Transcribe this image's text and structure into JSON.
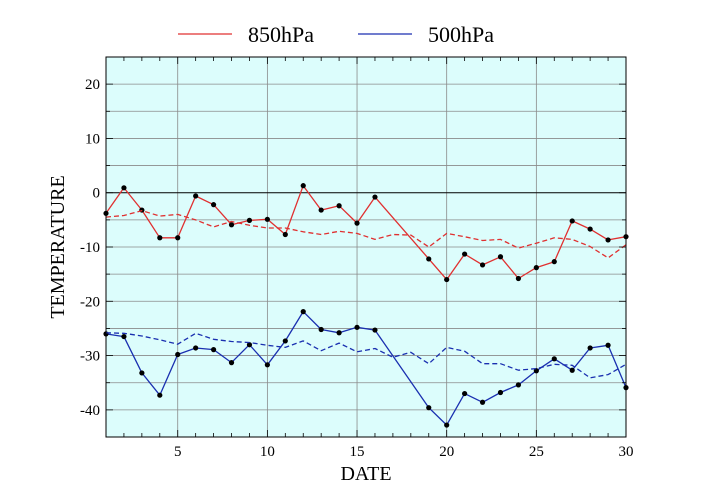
{
  "chart_data": {
    "type": "line",
    "xlabel": "DATE",
    "ylabel": "TEMPERATURE",
    "xlim": [
      1,
      30
    ],
    "ylim": [
      -45,
      25
    ],
    "x_ticks": [
      5,
      10,
      15,
      20,
      25,
      30
    ],
    "y_ticks": [
      -40,
      -30,
      -20,
      -10,
      0,
      10,
      20
    ],
    "grid": true,
    "plot_background": "#dcfdfc",
    "legend_position": "top",
    "series": [
      {
        "name": "850hPa",
        "color": "#e03030",
        "style": "solid-markers",
        "x": [
          1,
          2,
          3,
          4,
          5,
          6,
          7,
          8,
          9,
          10,
          11,
          12,
          13,
          14,
          15,
          16,
          19,
          20,
          21,
          22,
          23,
          24,
          25,
          26,
          27,
          28,
          29,
          30
        ],
        "y": [
          -3.8,
          0.9,
          -3.2,
          -8.3,
          -8.3,
          -0.6,
          -2.2,
          -5.9,
          -5.1,
          -4.9,
          -7.7,
          1.3,
          -3.2,
          -2.4,
          -5.6,
          -0.8,
          -12.2,
          -16.0,
          -11.3,
          -13.3,
          -11.8,
          -15.8,
          -13.8,
          -12.7,
          -5.2,
          -6.7,
          -8.7,
          -8.1
        ]
      },
      {
        "name": "",
        "color": "#e03030",
        "style": "dashed",
        "x": [
          1,
          2,
          3,
          4,
          5,
          6,
          7,
          8,
          9,
          10,
          11,
          12,
          13,
          14,
          15,
          16,
          17,
          18,
          19,
          20,
          21,
          22,
          23,
          24,
          25,
          26,
          27,
          28,
          29,
          30
        ],
        "y": [
          -4.5,
          -4.2,
          -3.3,
          -4.3,
          -4.0,
          -5.0,
          -6.3,
          -5.3,
          -6.0,
          -6.5,
          -6.5,
          -7.2,
          -7.7,
          -7.1,
          -7.5,
          -8.6,
          -7.7,
          -7.8,
          -10.0,
          -7.5,
          -8.1,
          -8.8,
          -8.6,
          -10.2,
          -9.3,
          -8.3,
          -8.6,
          -9.9,
          -12.0,
          -9.6
        ]
      },
      {
        "name": "500hPa",
        "color": "#1a2fb0",
        "style": "solid-markers",
        "x": [
          1,
          2,
          3,
          4,
          5,
          6,
          7,
          8,
          9,
          10,
          11,
          12,
          13,
          14,
          15,
          16,
          19,
          20,
          21,
          22,
          23,
          24,
          25,
          26,
          27,
          28,
          29,
          30
        ],
        "y": [
          -26.0,
          -26.5,
          -33.2,
          -37.3,
          -29.8,
          -28.6,
          -28.9,
          -31.3,
          -28.0,
          -31.7,
          -27.3,
          -21.9,
          -25.2,
          -25.8,
          -24.8,
          -25.3,
          -39.6,
          -42.8,
          -37.0,
          -38.6,
          -36.8,
          -35.4,
          -32.8,
          -30.6,
          -32.7,
          -28.6,
          -28.1,
          -35.9
        ]
      },
      {
        "name": "",
        "color": "#1a2fb0",
        "style": "dashed",
        "x": [
          1,
          2,
          3,
          4,
          5,
          6,
          7,
          8,
          9,
          10,
          11,
          12,
          13,
          14,
          15,
          16,
          17,
          18,
          19,
          20,
          21,
          22,
          23,
          24,
          25,
          26,
          27,
          28,
          29,
          30
        ],
        "y": [
          -25.8,
          -25.9,
          -26.4,
          -27.1,
          -27.9,
          -25.9,
          -27.0,
          -27.4,
          -27.6,
          -28.1,
          -28.5,
          -27.3,
          -29.1,
          -27.7,
          -29.3,
          -28.7,
          -30.3,
          -29.4,
          -31.5,
          -28.5,
          -29.2,
          -31.5,
          -31.5,
          -32.7,
          -32.4,
          -31.6,
          -31.8,
          -34.1,
          -33.5,
          -31.6
        ]
      }
    ]
  }
}
